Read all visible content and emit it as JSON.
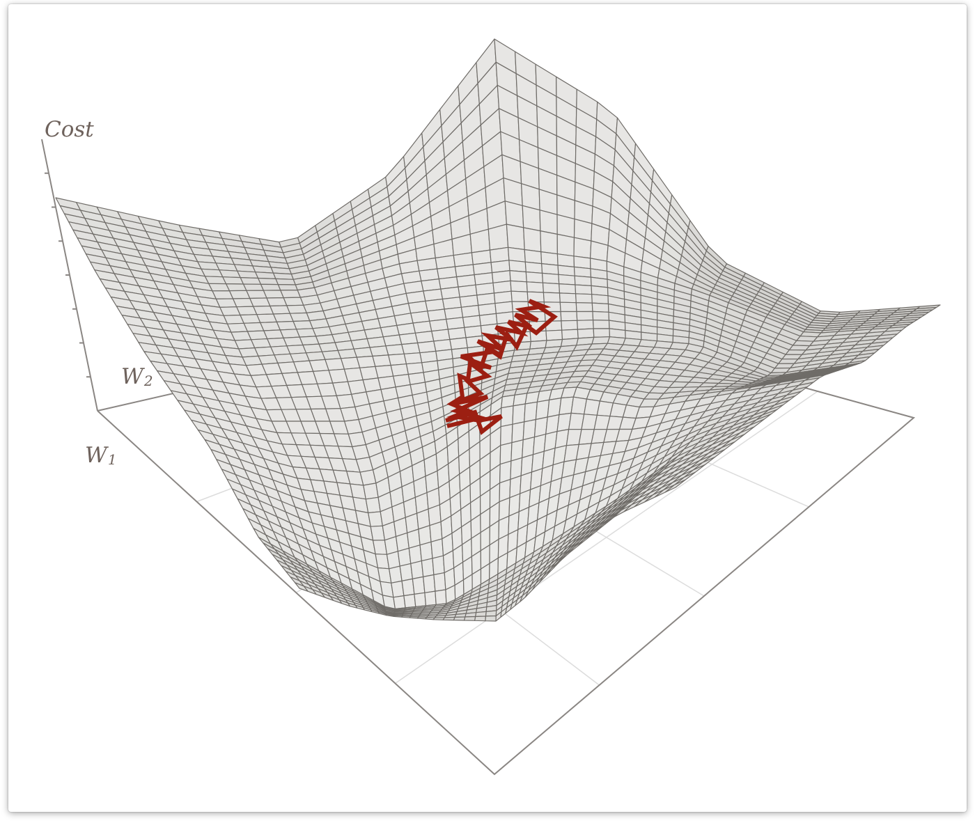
{
  "diagram": {
    "axes": {
      "z_label": "Cost",
      "w2_label": "W",
      "w2_subscript": "2",
      "w1_label": "W",
      "w1_subscript": "1"
    },
    "colors": {
      "surface_light": "#f7f7f5",
      "surface_dark": "#9c9a96",
      "mesh_line": "#6f6c68",
      "axis": "#8a8683",
      "floor_grid": "#dcdcdc",
      "path": "#9c1f12",
      "label": "#6e625c"
    }
  }
}
